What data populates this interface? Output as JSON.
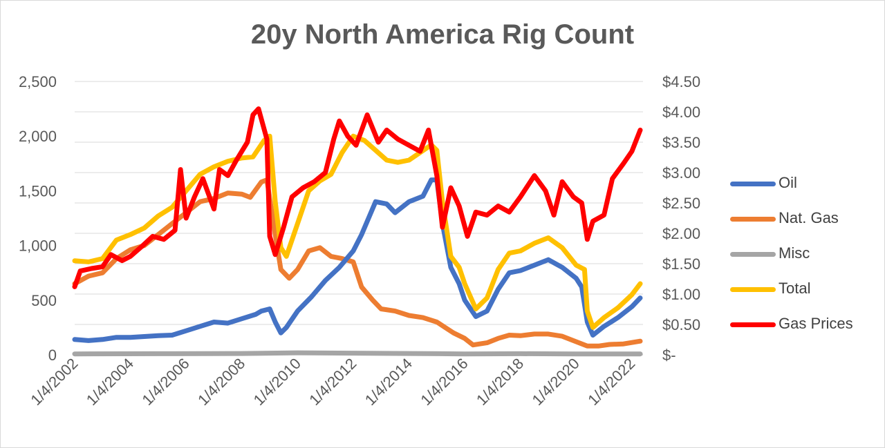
{
  "chart_data": {
    "type": "line",
    "title": "20y North America Rig Count",
    "x_tick_labels": [
      "1/4/2002",
      "1/4/2004",
      "1/4/2006",
      "1/4/2008",
      "1/4/2010",
      "1/4/2012",
      "1/4/2014",
      "1/4/2016",
      "1/4/2018",
      "1/4/2020",
      "1/4/2022"
    ],
    "y_left": {
      "ticks": [
        "0",
        "500",
        "1,000",
        "1,500",
        "2,000",
        "2,500"
      ],
      "range": [
        0,
        2500
      ]
    },
    "y_right": {
      "ticks": [
        "$-",
        "$0.50",
        "$1.00",
        "$1.50",
        "$2.00",
        "$2.50",
        "$3.00",
        "$3.50",
        "$4.00",
        "$4.50"
      ],
      "range": [
        0,
        4.5
      ]
    },
    "x_range": [
      2002.0,
      2022.4
    ],
    "grid": "horizontal",
    "legend_position": "right",
    "series": [
      {
        "name": "Oil",
        "axis": "left",
        "color": "#4472C4",
        "points": [
          [
            2002.0,
            140
          ],
          [
            2002.5,
            130
          ],
          [
            2003.0,
            140
          ],
          [
            2003.5,
            160
          ],
          [
            2004.0,
            160
          ],
          [
            2005.0,
            175
          ],
          [
            2005.5,
            180
          ],
          [
            2006.0,
            220
          ],
          [
            2006.5,
            260
          ],
          [
            2007.0,
            300
          ],
          [
            2007.5,
            290
          ],
          [
            2008.0,
            330
          ],
          [
            2008.5,
            370
          ],
          [
            2008.7,
            400
          ],
          [
            2009.0,
            420
          ],
          [
            2009.2,
            300
          ],
          [
            2009.4,
            200
          ],
          [
            2009.6,
            250
          ],
          [
            2010.0,
            400
          ],
          [
            2010.5,
            530
          ],
          [
            2011.0,
            680
          ],
          [
            2011.5,
            800
          ],
          [
            2012.0,
            950
          ],
          [
            2012.3,
            1100
          ],
          [
            2012.8,
            1400
          ],
          [
            2013.2,
            1380
          ],
          [
            2013.5,
            1300
          ],
          [
            2014.0,
            1400
          ],
          [
            2014.5,
            1450
          ],
          [
            2014.8,
            1600
          ],
          [
            2015.0,
            1600
          ],
          [
            2015.2,
            1200
          ],
          [
            2015.5,
            800
          ],
          [
            2015.8,
            650
          ],
          [
            2016.0,
            500
          ],
          [
            2016.4,
            350
          ],
          [
            2016.8,
            400
          ],
          [
            2017.2,
            600
          ],
          [
            2017.6,
            750
          ],
          [
            2018.0,
            770
          ],
          [
            2018.5,
            820
          ],
          [
            2019.0,
            870
          ],
          [
            2019.5,
            800
          ],
          [
            2020.0,
            700
          ],
          [
            2020.2,
            620
          ],
          [
            2020.4,
            300
          ],
          [
            2020.6,
            180
          ],
          [
            2021.0,
            260
          ],
          [
            2021.5,
            340
          ],
          [
            2022.0,
            440
          ],
          [
            2022.3,
            520
          ]
        ]
      },
      {
        "name": "Nat. Gas",
        "axis": "left",
        "color": "#ED7D31",
        "points": [
          [
            2002.0,
            650
          ],
          [
            2002.5,
            720
          ],
          [
            2003.0,
            750
          ],
          [
            2003.5,
            880
          ],
          [
            2004.0,
            960
          ],
          [
            2004.5,
            1000
          ],
          [
            2005.0,
            1100
          ],
          [
            2005.5,
            1200
          ],
          [
            2006.0,
            1300
          ],
          [
            2006.5,
            1400
          ],
          [
            2007.0,
            1430
          ],
          [
            2007.5,
            1480
          ],
          [
            2008.0,
            1470
          ],
          [
            2008.3,
            1440
          ],
          [
            2008.7,
            1580
          ],
          [
            2008.9,
            1600
          ],
          [
            2009.2,
            1100
          ],
          [
            2009.4,
            780
          ],
          [
            2009.7,
            700
          ],
          [
            2010.0,
            780
          ],
          [
            2010.4,
            950
          ],
          [
            2010.8,
            980
          ],
          [
            2011.2,
            900
          ],
          [
            2011.6,
            880
          ],
          [
            2012.0,
            850
          ],
          [
            2012.3,
            620
          ],
          [
            2012.7,
            500
          ],
          [
            2013.0,
            420
          ],
          [
            2013.5,
            400
          ],
          [
            2014.0,
            360
          ],
          [
            2014.5,
            340
          ],
          [
            2015.0,
            300
          ],
          [
            2015.3,
            250
          ],
          [
            2015.6,
            200
          ],
          [
            2016.0,
            150
          ],
          [
            2016.3,
            90
          ],
          [
            2016.8,
            110
          ],
          [
            2017.2,
            150
          ],
          [
            2017.6,
            180
          ],
          [
            2018.0,
            175
          ],
          [
            2018.5,
            190
          ],
          [
            2019.0,
            190
          ],
          [
            2019.5,
            170
          ],
          [
            2020.0,
            120
          ],
          [
            2020.4,
            80
          ],
          [
            2020.8,
            80
          ],
          [
            2021.2,
            95
          ],
          [
            2021.7,
            100
          ],
          [
            2022.3,
            125
          ]
        ]
      },
      {
        "name": "Misc",
        "axis": "left",
        "color": "#A5A5A5",
        "points": [
          [
            2002.0,
            8
          ],
          [
            2005.0,
            10
          ],
          [
            2008.0,
            12
          ],
          [
            2010.0,
            18
          ],
          [
            2012.0,
            15
          ],
          [
            2014.0,
            12
          ],
          [
            2016.0,
            8
          ],
          [
            2018.0,
            10
          ],
          [
            2020.0,
            8
          ],
          [
            2022.3,
            8
          ]
        ]
      },
      {
        "name": "Total",
        "axis": "left",
        "color": "#FFC000",
        "points": [
          [
            2002.0,
            860
          ],
          [
            2002.5,
            850
          ],
          [
            2003.0,
            880
          ],
          [
            2003.5,
            1050
          ],
          [
            2004.0,
            1100
          ],
          [
            2004.5,
            1160
          ],
          [
            2005.0,
            1270
          ],
          [
            2005.5,
            1350
          ],
          [
            2006.0,
            1500
          ],
          [
            2006.5,
            1650
          ],
          [
            2007.0,
            1720
          ],
          [
            2007.5,
            1770
          ],
          [
            2008.0,
            1800
          ],
          [
            2008.4,
            1810
          ],
          [
            2008.8,
            1960
          ],
          [
            2009.0,
            2000
          ],
          [
            2009.2,
            1400
          ],
          [
            2009.4,
            980
          ],
          [
            2009.6,
            900
          ],
          [
            2010.0,
            1200
          ],
          [
            2010.4,
            1500
          ],
          [
            2010.8,
            1590
          ],
          [
            2011.2,
            1650
          ],
          [
            2011.6,
            1850
          ],
          [
            2012.0,
            2000
          ],
          [
            2012.4,
            1960
          ],
          [
            2012.8,
            1870
          ],
          [
            2013.2,
            1780
          ],
          [
            2013.6,
            1760
          ],
          [
            2014.0,
            1780
          ],
          [
            2014.4,
            1850
          ],
          [
            2014.8,
            1920
          ],
          [
            2015.0,
            1870
          ],
          [
            2015.2,
            1400
          ],
          [
            2015.5,
            900
          ],
          [
            2015.8,
            800
          ],
          [
            2016.0,
            650
          ],
          [
            2016.4,
            420
          ],
          [
            2016.8,
            520
          ],
          [
            2017.2,
            780
          ],
          [
            2017.6,
            930
          ],
          [
            2018.0,
            950
          ],
          [
            2018.5,
            1020
          ],
          [
            2019.0,
            1070
          ],
          [
            2019.5,
            980
          ],
          [
            2020.0,
            820
          ],
          [
            2020.3,
            780
          ],
          [
            2020.4,
            400
          ],
          [
            2020.6,
            250
          ],
          [
            2021.0,
            340
          ],
          [
            2021.5,
            430
          ],
          [
            2022.0,
            550
          ],
          [
            2022.3,
            650
          ]
        ]
      },
      {
        "name": "Gas Prices",
        "axis": "right",
        "color": "#FF0000",
        "points": [
          [
            2002.0,
            1.12
          ],
          [
            2002.2,
            1.38
          ],
          [
            2002.6,
            1.42
          ],
          [
            2003.0,
            1.45
          ],
          [
            2003.3,
            1.65
          ],
          [
            2003.7,
            1.55
          ],
          [
            2004.0,
            1.62
          ],
          [
            2004.4,
            1.78
          ],
          [
            2004.8,
            1.95
          ],
          [
            2005.2,
            1.9
          ],
          [
            2005.6,
            2.05
          ],
          [
            2005.8,
            3.05
          ],
          [
            2006.0,
            2.25
          ],
          [
            2006.3,
            2.6
          ],
          [
            2006.6,
            2.9
          ],
          [
            2007.0,
            2.4
          ],
          [
            2007.2,
            3.05
          ],
          [
            2007.5,
            2.95
          ],
          [
            2007.8,
            3.2
          ],
          [
            2008.2,
            3.5
          ],
          [
            2008.4,
            3.95
          ],
          [
            2008.6,
            4.05
          ],
          [
            2008.9,
            3.55
          ],
          [
            2009.0,
            1.95
          ],
          [
            2009.2,
            1.65
          ],
          [
            2009.5,
            2.1
          ],
          [
            2009.8,
            2.6
          ],
          [
            2010.2,
            2.75
          ],
          [
            2010.6,
            2.85
          ],
          [
            2011.0,
            3.0
          ],
          [
            2011.3,
            3.55
          ],
          [
            2011.5,
            3.85
          ],
          [
            2011.8,
            3.6
          ],
          [
            2012.1,
            3.45
          ],
          [
            2012.5,
            3.95
          ],
          [
            2012.9,
            3.5
          ],
          [
            2013.2,
            3.7
          ],
          [
            2013.6,
            3.55
          ],
          [
            2014.0,
            3.45
          ],
          [
            2014.4,
            3.35
          ],
          [
            2014.7,
            3.7
          ],
          [
            2015.0,
            2.95
          ],
          [
            2015.2,
            2.1
          ],
          [
            2015.5,
            2.75
          ],
          [
            2015.8,
            2.45
          ],
          [
            2016.1,
            1.95
          ],
          [
            2016.4,
            2.35
          ],
          [
            2016.8,
            2.3
          ],
          [
            2017.2,
            2.45
          ],
          [
            2017.6,
            2.35
          ],
          [
            2018.0,
            2.6
          ],
          [
            2018.5,
            2.95
          ],
          [
            2018.9,
            2.7
          ],
          [
            2019.2,
            2.3
          ],
          [
            2019.5,
            2.85
          ],
          [
            2019.9,
            2.6
          ],
          [
            2020.2,
            2.5
          ],
          [
            2020.4,
            1.9
          ],
          [
            2020.6,
            2.2
          ],
          [
            2021.0,
            2.3
          ],
          [
            2021.3,
            2.9
          ],
          [
            2021.7,
            3.15
          ],
          [
            2022.0,
            3.35
          ],
          [
            2022.3,
            3.7
          ]
        ]
      }
    ]
  }
}
